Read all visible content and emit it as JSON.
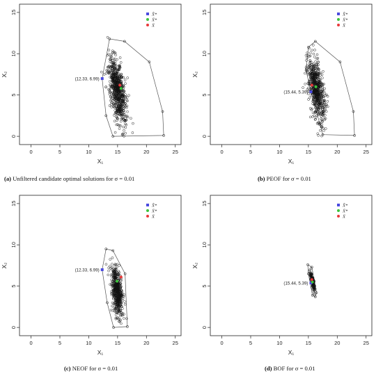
{
  "chart_data": [
    {
      "type": "scatter",
      "panel_label": "(a)",
      "caption": "Unfiltered candidate optimal solutions for σ = 0.01",
      "xlabel": "X₁",
      "ylabel": "X₂",
      "xlim": [
        -2,
        26
      ],
      "ylim": [
        -1,
        16
      ],
      "xticks": [
        0,
        5,
        10,
        15,
        20,
        25
      ],
      "yticks": [
        0,
        5,
        10,
        15
      ],
      "grid": false,
      "legend": {
        "position": "top-right",
        "entries": [
          {
            "label": "X̂*",
            "color": "#4a4adf",
            "marker": "square"
          },
          {
            "label": "X̄*",
            "color": "#3cc43c",
            "marker": "dot"
          },
          {
            "label": "X̄",
            "color": "#e83a3a",
            "marker": "dot"
          }
        ]
      },
      "annotation": {
        "text": "(12.33, 6.99)",
        "x": 12.33,
        "y": 6.99
      },
      "markers": {
        "x_hat_star": [
          12.33,
          6.99
        ],
        "x_bar_star": [
          15.6,
          5.8
        ],
        "x_bar": [
          15.4,
          6.2
        ]
      },
      "hull": [
        [
          12.33,
          6.99
        ],
        [
          13.6,
          11.8
        ],
        [
          16.2,
          11.5
        ],
        [
          20.5,
          9.0
        ],
        [
          22.8,
          3.0
        ],
        [
          23.0,
          0.1
        ],
        [
          14.2,
          0.0
        ],
        [
          13.0,
          2.5
        ]
      ],
      "cloud": {
        "center": [
          15.0,
          5.5
        ],
        "spread": [
          1.2,
          3.6
        ],
        "tilt": -0.22,
        "count": 700
      }
    },
    {
      "type": "scatter",
      "panel_label": "(b)",
      "caption": "PEOF for σ = 0.01",
      "xlabel": "X₁",
      "ylabel": "X₂",
      "xlim": [
        -2,
        26
      ],
      "ylim": [
        -1,
        16
      ],
      "xticks": [
        0,
        5,
        10,
        15,
        20,
        25
      ],
      "yticks": [
        0,
        5,
        10,
        15
      ],
      "grid": false,
      "legend": {
        "position": "top-right",
        "entries": [
          {
            "label": "X̂*",
            "color": "#4a4adf",
            "marker": "square"
          },
          {
            "label": "X̄*",
            "color": "#3cc43c",
            "marker": "dot"
          },
          {
            "label": "X̄",
            "color": "#e83a3a",
            "marker": "dot"
          }
        ]
      },
      "annotation": {
        "text": "(15.44, 5.39)",
        "x": 15.44,
        "y": 5.39
      },
      "markers": {
        "x_hat_star": [
          15.44,
          5.39
        ],
        "x_bar_star": [
          16.3,
          6.0
        ],
        "x_bar": [
          15.6,
          6.2
        ]
      },
      "hull": [
        [
          15.0,
          10.8
        ],
        [
          16.2,
          11.5
        ],
        [
          20.5,
          9.0
        ],
        [
          22.8,
          3.0
        ],
        [
          23.0,
          0.1
        ],
        [
          17.5,
          0.2
        ],
        [
          15.44,
          5.39
        ],
        [
          14.6,
          8.0
        ]
      ],
      "cloud": {
        "center": [
          16.4,
          5.6
        ],
        "spread": [
          1.1,
          3.4
        ],
        "tilt": -0.2,
        "count": 650
      }
    },
    {
      "type": "scatter",
      "panel_label": "(c)",
      "caption": "NEOF for σ = 0.01",
      "xlabel": "X₁",
      "ylabel": "X₂",
      "xlim": [
        -2,
        26
      ],
      "ylim": [
        -1,
        16
      ],
      "xticks": [
        0,
        5,
        10,
        15,
        20,
        25
      ],
      "yticks": [
        0,
        5,
        10,
        15
      ],
      "grid": false,
      "legend": {
        "position": "top-right",
        "entries": [
          {
            "label": "X̂*",
            "color": "#4a4adf",
            "marker": "square"
          },
          {
            "label": "X̄*",
            "color": "#3cc43c",
            "marker": "dot"
          },
          {
            "label": "X̄",
            "color": "#e83a3a",
            "marker": "dot"
          }
        ]
      },
      "annotation": {
        "text": "(12.33, 6.99)",
        "x": 12.33,
        "y": 6.99
      },
      "markers": {
        "x_hat_star": [
          12.33,
          6.99
        ],
        "x_bar_star": [
          14.9,
          5.6
        ],
        "x_bar": [
          15.6,
          6.1
        ]
      },
      "hull": [
        [
          12.33,
          6.99
        ],
        [
          13.0,
          9.5
        ],
        [
          14.2,
          9.3
        ],
        [
          16.3,
          6.5
        ],
        [
          16.7,
          0.1
        ],
        [
          14.3,
          0.0
        ],
        [
          13.2,
          3.0
        ]
      ],
      "cloud": {
        "center": [
          14.9,
          4.4
        ],
        "spread": [
          0.75,
          2.8
        ],
        "tilt": -0.15,
        "count": 520
      }
    },
    {
      "type": "scatter",
      "panel_label": "(d)",
      "caption": "BOF for σ = 0.01",
      "xlabel": "X₁",
      "ylabel": "X₂",
      "xlim": [
        -2,
        26
      ],
      "ylim": [
        -1,
        16
      ],
      "xticks": [
        0,
        5,
        10,
        15,
        20,
        25
      ],
      "yticks": [
        0,
        5,
        10,
        15
      ],
      "grid": false,
      "legend": {
        "position": "top-right",
        "entries": [
          {
            "label": "X̂*",
            "color": "#4a4adf",
            "marker": "square"
          },
          {
            "label": "X̄*",
            "color": "#3cc43c",
            "marker": "dot"
          },
          {
            "label": "X̄",
            "color": "#e83a3a",
            "marker": "dot"
          }
        ]
      },
      "annotation": {
        "text": "(15.44, 5.39)",
        "x": 15.44,
        "y": 5.39
      },
      "markers": {
        "x_hat_star": [
          15.44,
          5.39
        ],
        "x_bar_star": [
          15.7,
          5.5
        ],
        "x_bar": [
          15.6,
          5.8
        ]
      },
      "hull": [
        [
          14.9,
          7.6
        ],
        [
          15.6,
          7.3
        ],
        [
          16.4,
          4.2
        ],
        [
          16.2,
          3.7
        ],
        [
          15.7,
          3.9
        ],
        [
          15.0,
          6.5
        ]
      ],
      "cloud": {
        "center": [
          15.7,
          5.6
        ],
        "spread": [
          0.22,
          1.0
        ],
        "tilt": -0.3,
        "count": 160
      }
    }
  ]
}
